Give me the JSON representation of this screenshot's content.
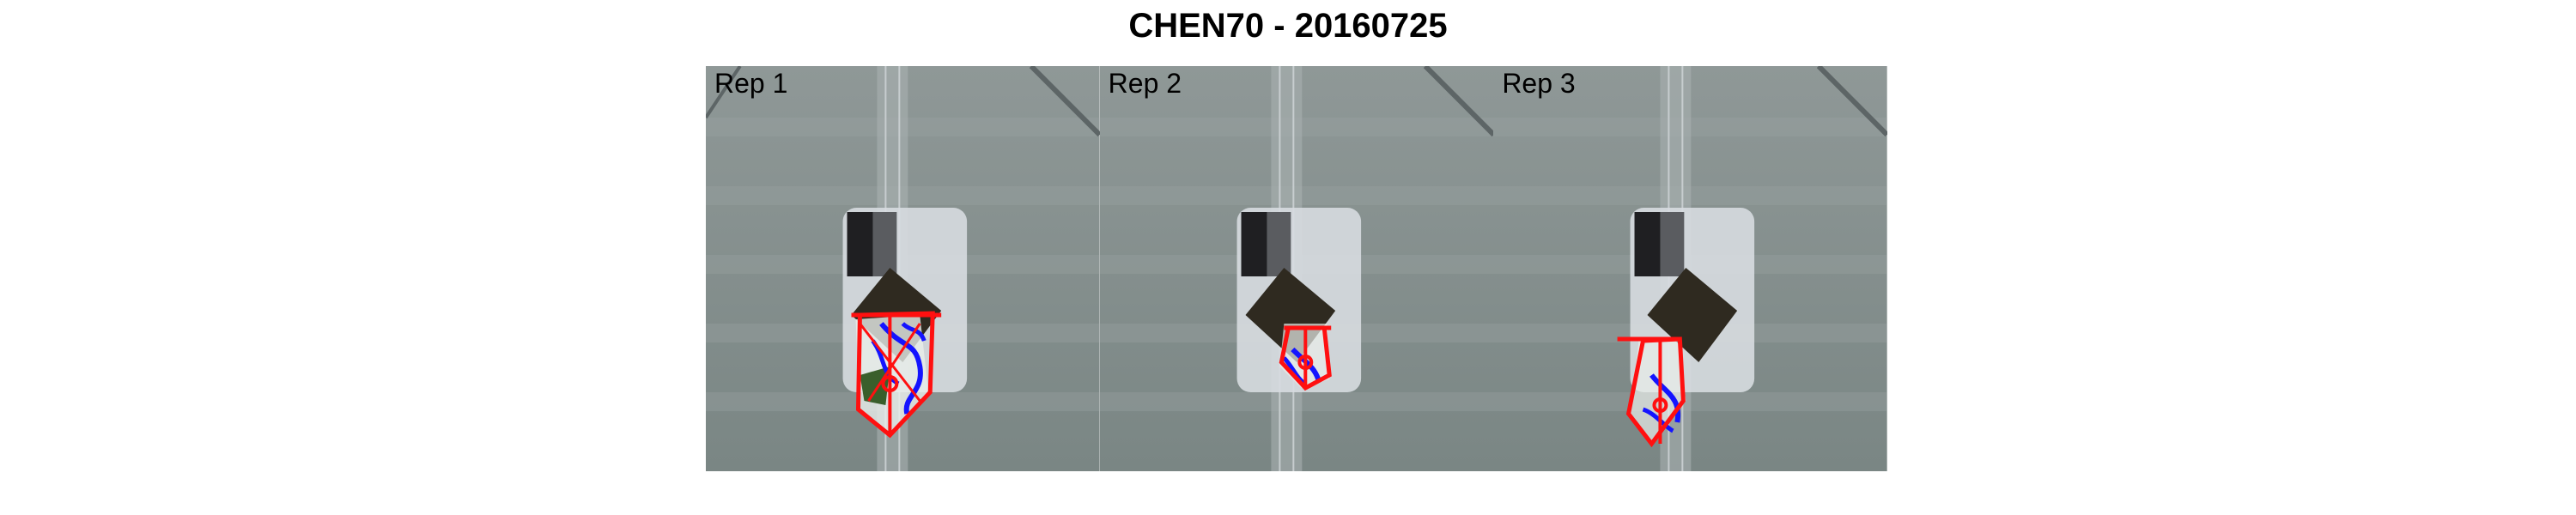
{
  "figure": {
    "title": "CHEN70 - 20160725"
  },
  "panels": [
    {
      "label": "Rep 1"
    },
    {
      "label": "Rep 2"
    },
    {
      "label": "Rep 3"
    }
  ],
  "colors": {
    "background": "#7f8c8a",
    "soil": "#2f2a20",
    "container": "#d8dde0",
    "overlay_red": "#ff1010",
    "overlay_blue": "#1414ff",
    "leaf_green": "#3a5f2b"
  }
}
